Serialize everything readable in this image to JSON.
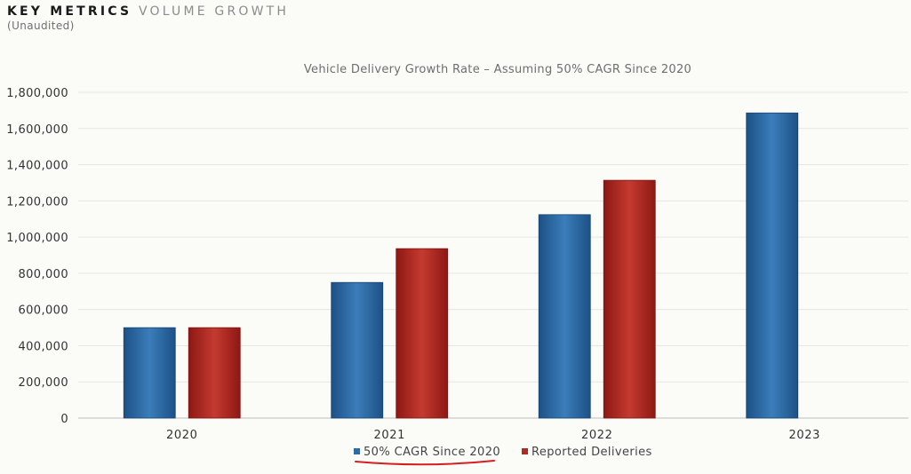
{
  "header": {
    "kw1": "KEY METRICS",
    "kw2": "VOLUME GROWTH",
    "subtitle": "(Unaudited)"
  },
  "chart_data": {
    "type": "bar",
    "title": "Vehicle Delivery Growth Rate – Assuming 50% CAGR Since 2020",
    "categories": [
      "2020",
      "2021",
      "2022",
      "2023"
    ],
    "series": [
      {
        "name": "50% CAGR Since 2020",
        "color": "#2e6aa3",
        "values": [
          499550,
          749325,
          1123988,
          1685981
        ]
      },
      {
        "name": "Reported Deliveries",
        "color": "#b02a24",
        "values": [
          499550,
          936172,
          1313851,
          null
        ]
      }
    ],
    "ylim": [
      0,
      1800000
    ],
    "yticks": [
      0,
      200000,
      400000,
      600000,
      800000,
      1000000,
      1200000,
      1400000,
      1600000,
      1800000
    ],
    "ytick_labels": [
      "0",
      "200,000",
      "400,000",
      "600,000",
      "800,000",
      "1,000,000",
      "1,200,000",
      "1,400,000",
      "1,600,000",
      "1,800,000"
    ],
    "xlabel": "",
    "ylabel": "",
    "grid": true,
    "legend": "bottom-center",
    "annotation": "red underline under legend entry \"50% CAGR Since 2020\""
  }
}
